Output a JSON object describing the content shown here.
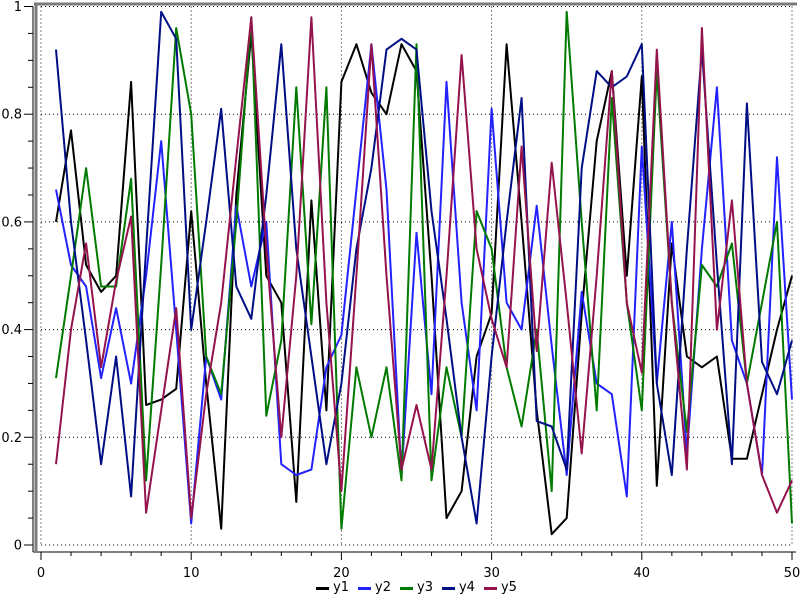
{
  "chart_data": {
    "type": "line",
    "title": "",
    "xlabel": "",
    "ylabel": "",
    "xlim": [
      0,
      50
    ],
    "ylim": [
      0,
      1
    ],
    "grid": "dotted",
    "legend_position": "bottom",
    "x_major_ticks": [
      0,
      10,
      20,
      30,
      40,
      50
    ],
    "x_tick_labels": [
      "0",
      "10",
      "20",
      "30",
      "40",
      "50"
    ],
    "x_minor_step": 2,
    "y_major_ticks": [
      0,
      0.2,
      0.4,
      0.6,
      0.8,
      1
    ],
    "y_tick_labels": [
      "0",
      "0.2",
      "0.4",
      "0.6",
      "0.8",
      "1"
    ],
    "y_minor_step": 0.05,
    "x_start": 1,
    "x_step": 1,
    "x": [
      1,
      2,
      3,
      4,
      5,
      6,
      7,
      8,
      9,
      10,
      11,
      12,
      13,
      14,
      15,
      16,
      17,
      18,
      19,
      20,
      21,
      22,
      23,
      24,
      25,
      26,
      27,
      28,
      29,
      30,
      31,
      32,
      33,
      34,
      35,
      36,
      37,
      38,
      39,
      40,
      41,
      42,
      43,
      44,
      45,
      46,
      47,
      48,
      49,
      50
    ],
    "series": [
      {
        "name": "y1",
        "color": "#000000",
        "values": [
          0.6,
          0.77,
          0.52,
          0.47,
          0.5,
          0.86,
          0.26,
          0.27,
          0.29,
          0.62,
          0.3,
          0.03,
          0.65,
          0.95,
          0.5,
          0.45,
          0.08,
          0.64,
          0.25,
          0.86,
          0.93,
          0.84,
          0.8,
          0.93,
          0.88,
          0.5,
          0.05,
          0.1,
          0.35,
          0.43,
          0.93,
          0.6,
          0.25,
          0.02,
          0.05,
          0.43,
          0.75,
          0.88,
          0.5,
          0.87,
          0.11,
          0.56,
          0.35,
          0.33,
          0.35,
          0.16,
          0.16,
          0.28,
          0.4,
          0.5
        ]
      },
      {
        "name": "y2",
        "color": "#2222ff",
        "values": [
          0.66,
          0.52,
          0.48,
          0.31,
          0.44,
          0.3,
          0.5,
          0.75,
          0.4,
          0.04,
          0.35,
          0.27,
          0.63,
          0.48,
          0.6,
          0.15,
          0.13,
          0.14,
          0.33,
          0.39,
          0.66,
          0.93,
          0.66,
          0.13,
          0.58,
          0.28,
          0.86,
          0.45,
          0.25,
          0.81,
          0.45,
          0.4,
          0.63,
          0.37,
          0.13,
          0.47,
          0.3,
          0.28,
          0.09,
          0.74,
          0.3,
          0.6,
          0.17,
          0.55,
          0.85,
          0.38,
          0.3,
          0.13,
          0.72,
          0.27
        ]
      },
      {
        "name": "y3",
        "color": "#007a00",
        "values": [
          0.31,
          0.5,
          0.7,
          0.48,
          0.48,
          0.68,
          0.12,
          0.52,
          0.96,
          0.8,
          0.35,
          0.28,
          0.6,
          0.98,
          0.24,
          0.38,
          0.85,
          0.41,
          0.85,
          0.03,
          0.33,
          0.2,
          0.33,
          0.12,
          0.93,
          0.12,
          0.33,
          0.2,
          0.62,
          0.55,
          0.33,
          0.22,
          0.4,
          0.1,
          0.99,
          0.6,
          0.25,
          0.83,
          0.45,
          0.25,
          0.88,
          0.45,
          0.21,
          0.52,
          0.48,
          0.56,
          0.3,
          0.45,
          0.6,
          0.04
        ]
      },
      {
        "name": "y4",
        "color": "#000e85",
        "values": [
          0.92,
          0.6,
          0.38,
          0.15,
          0.35,
          0.09,
          0.55,
          0.99,
          0.94,
          0.4,
          0.6,
          0.81,
          0.48,
          0.42,
          0.65,
          0.93,
          0.55,
          0.35,
          0.15,
          0.3,
          0.55,
          0.7,
          0.92,
          0.94,
          0.92,
          0.62,
          0.42,
          0.2,
          0.04,
          0.35,
          0.6,
          0.83,
          0.23,
          0.22,
          0.14,
          0.7,
          0.88,
          0.85,
          0.87,
          0.93,
          0.3,
          0.13,
          0.55,
          0.92,
          0.52,
          0.15,
          0.82,
          0.34,
          0.28,
          0.38
        ]
      },
      {
        "name": "y5",
        "color": "#95134c",
        "values": [
          0.15,
          0.4,
          0.56,
          0.33,
          0.49,
          0.61,
          0.06,
          0.25,
          0.44,
          0.05,
          0.28,
          0.45,
          0.72,
          0.98,
          0.55,
          0.2,
          0.5,
          0.98,
          0.45,
          0.1,
          0.5,
          0.93,
          0.5,
          0.14,
          0.26,
          0.14,
          0.5,
          0.91,
          0.55,
          0.42,
          0.33,
          0.74,
          0.36,
          0.71,
          0.45,
          0.17,
          0.5,
          0.88,
          0.45,
          0.32,
          0.92,
          0.45,
          0.14,
          0.96,
          0.4,
          0.64,
          0.3,
          0.13,
          0.06,
          0.12
        ]
      }
    ],
    "legend": [
      "y1",
      "y2",
      "y3",
      "y4",
      "y5"
    ]
  },
  "colors": {
    "background": "#ffffff",
    "frame": "#7b7b7b",
    "grid": "#000000",
    "axis": "#000000"
  }
}
